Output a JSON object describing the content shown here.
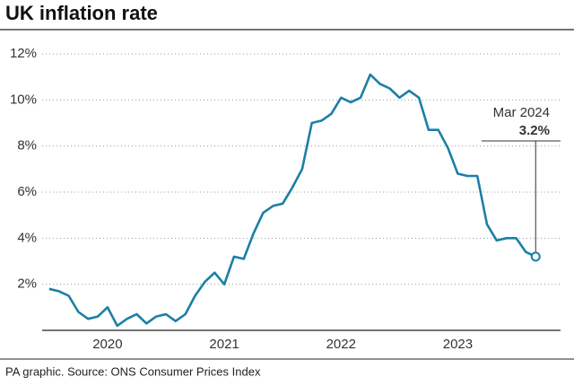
{
  "chart_data": {
    "type": "line",
    "title": "UK inflation rate",
    "source": "PA graphic. Source: ONS Consumer Prices Index",
    "color": "#1b7fa6",
    "x": [
      2020,
      2020.083,
      2020.167,
      2020.25,
      2020.333,
      2020.417,
      2020.5,
      2020.583,
      2020.667,
      2020.75,
      2020.833,
      2020.917,
      2021,
      2021.083,
      2021.167,
      2021.25,
      2021.333,
      2021.417,
      2021.5,
      2021.583,
      2021.667,
      2021.75,
      2021.833,
      2021.917,
      2022,
      2022.083,
      2022.167,
      2022.25,
      2022.333,
      2022.417,
      2022.5,
      2022.583,
      2022.667,
      2022.75,
      2022.833,
      2022.917,
      2023,
      2023.083,
      2023.167,
      2023.25,
      2023.333,
      2023.417,
      2023.5,
      2023.583,
      2023.667,
      2023.75,
      2023.833,
      2023.917,
      2024,
      2024.083,
      2024.167
    ],
    "values": [
      1.8,
      1.7,
      1.5,
      0.8,
      0.5,
      0.6,
      1.0,
      0.2,
      0.5,
      0.7,
      0.3,
      0.6,
      0.7,
      0.4,
      0.7,
      1.5,
      2.1,
      2.5,
      2.0,
      3.2,
      3.1,
      4.2,
      5.1,
      5.4,
      5.5,
      6.2,
      7.0,
      9.0,
      9.1,
      9.4,
      10.1,
      9.9,
      10.1,
      11.1,
      10.7,
      10.5,
      10.1,
      10.4,
      10.1,
      8.7,
      8.7,
      7.9,
      6.8,
      6.7,
      6.7,
      4.6,
      3.9,
      4.0,
      4.0,
      3.4,
      3.2
    ],
    "xlim": [
      2019.94,
      2024.38
    ],
    "ylim": [
      0,
      12
    ],
    "xticks": [
      {
        "value": 2020.5,
        "label": "2020"
      },
      {
        "value": 2021.5,
        "label": "2021"
      },
      {
        "value": 2022.5,
        "label": "2022"
      },
      {
        "value": 2023.5,
        "label": "2023"
      }
    ],
    "yticks": [
      {
        "value": 2,
        "label": "2%"
      },
      {
        "value": 4,
        "label": "4%"
      },
      {
        "value": 6,
        "label": "6%"
      },
      {
        "value": 8,
        "label": "8%"
      },
      {
        "value": 10,
        "label": "10%"
      },
      {
        "value": 12,
        "label": "12%"
      }
    ],
    "grid": true,
    "annotation": {
      "date_label": "Mar 2024",
      "value_label": "3.2%"
    }
  }
}
